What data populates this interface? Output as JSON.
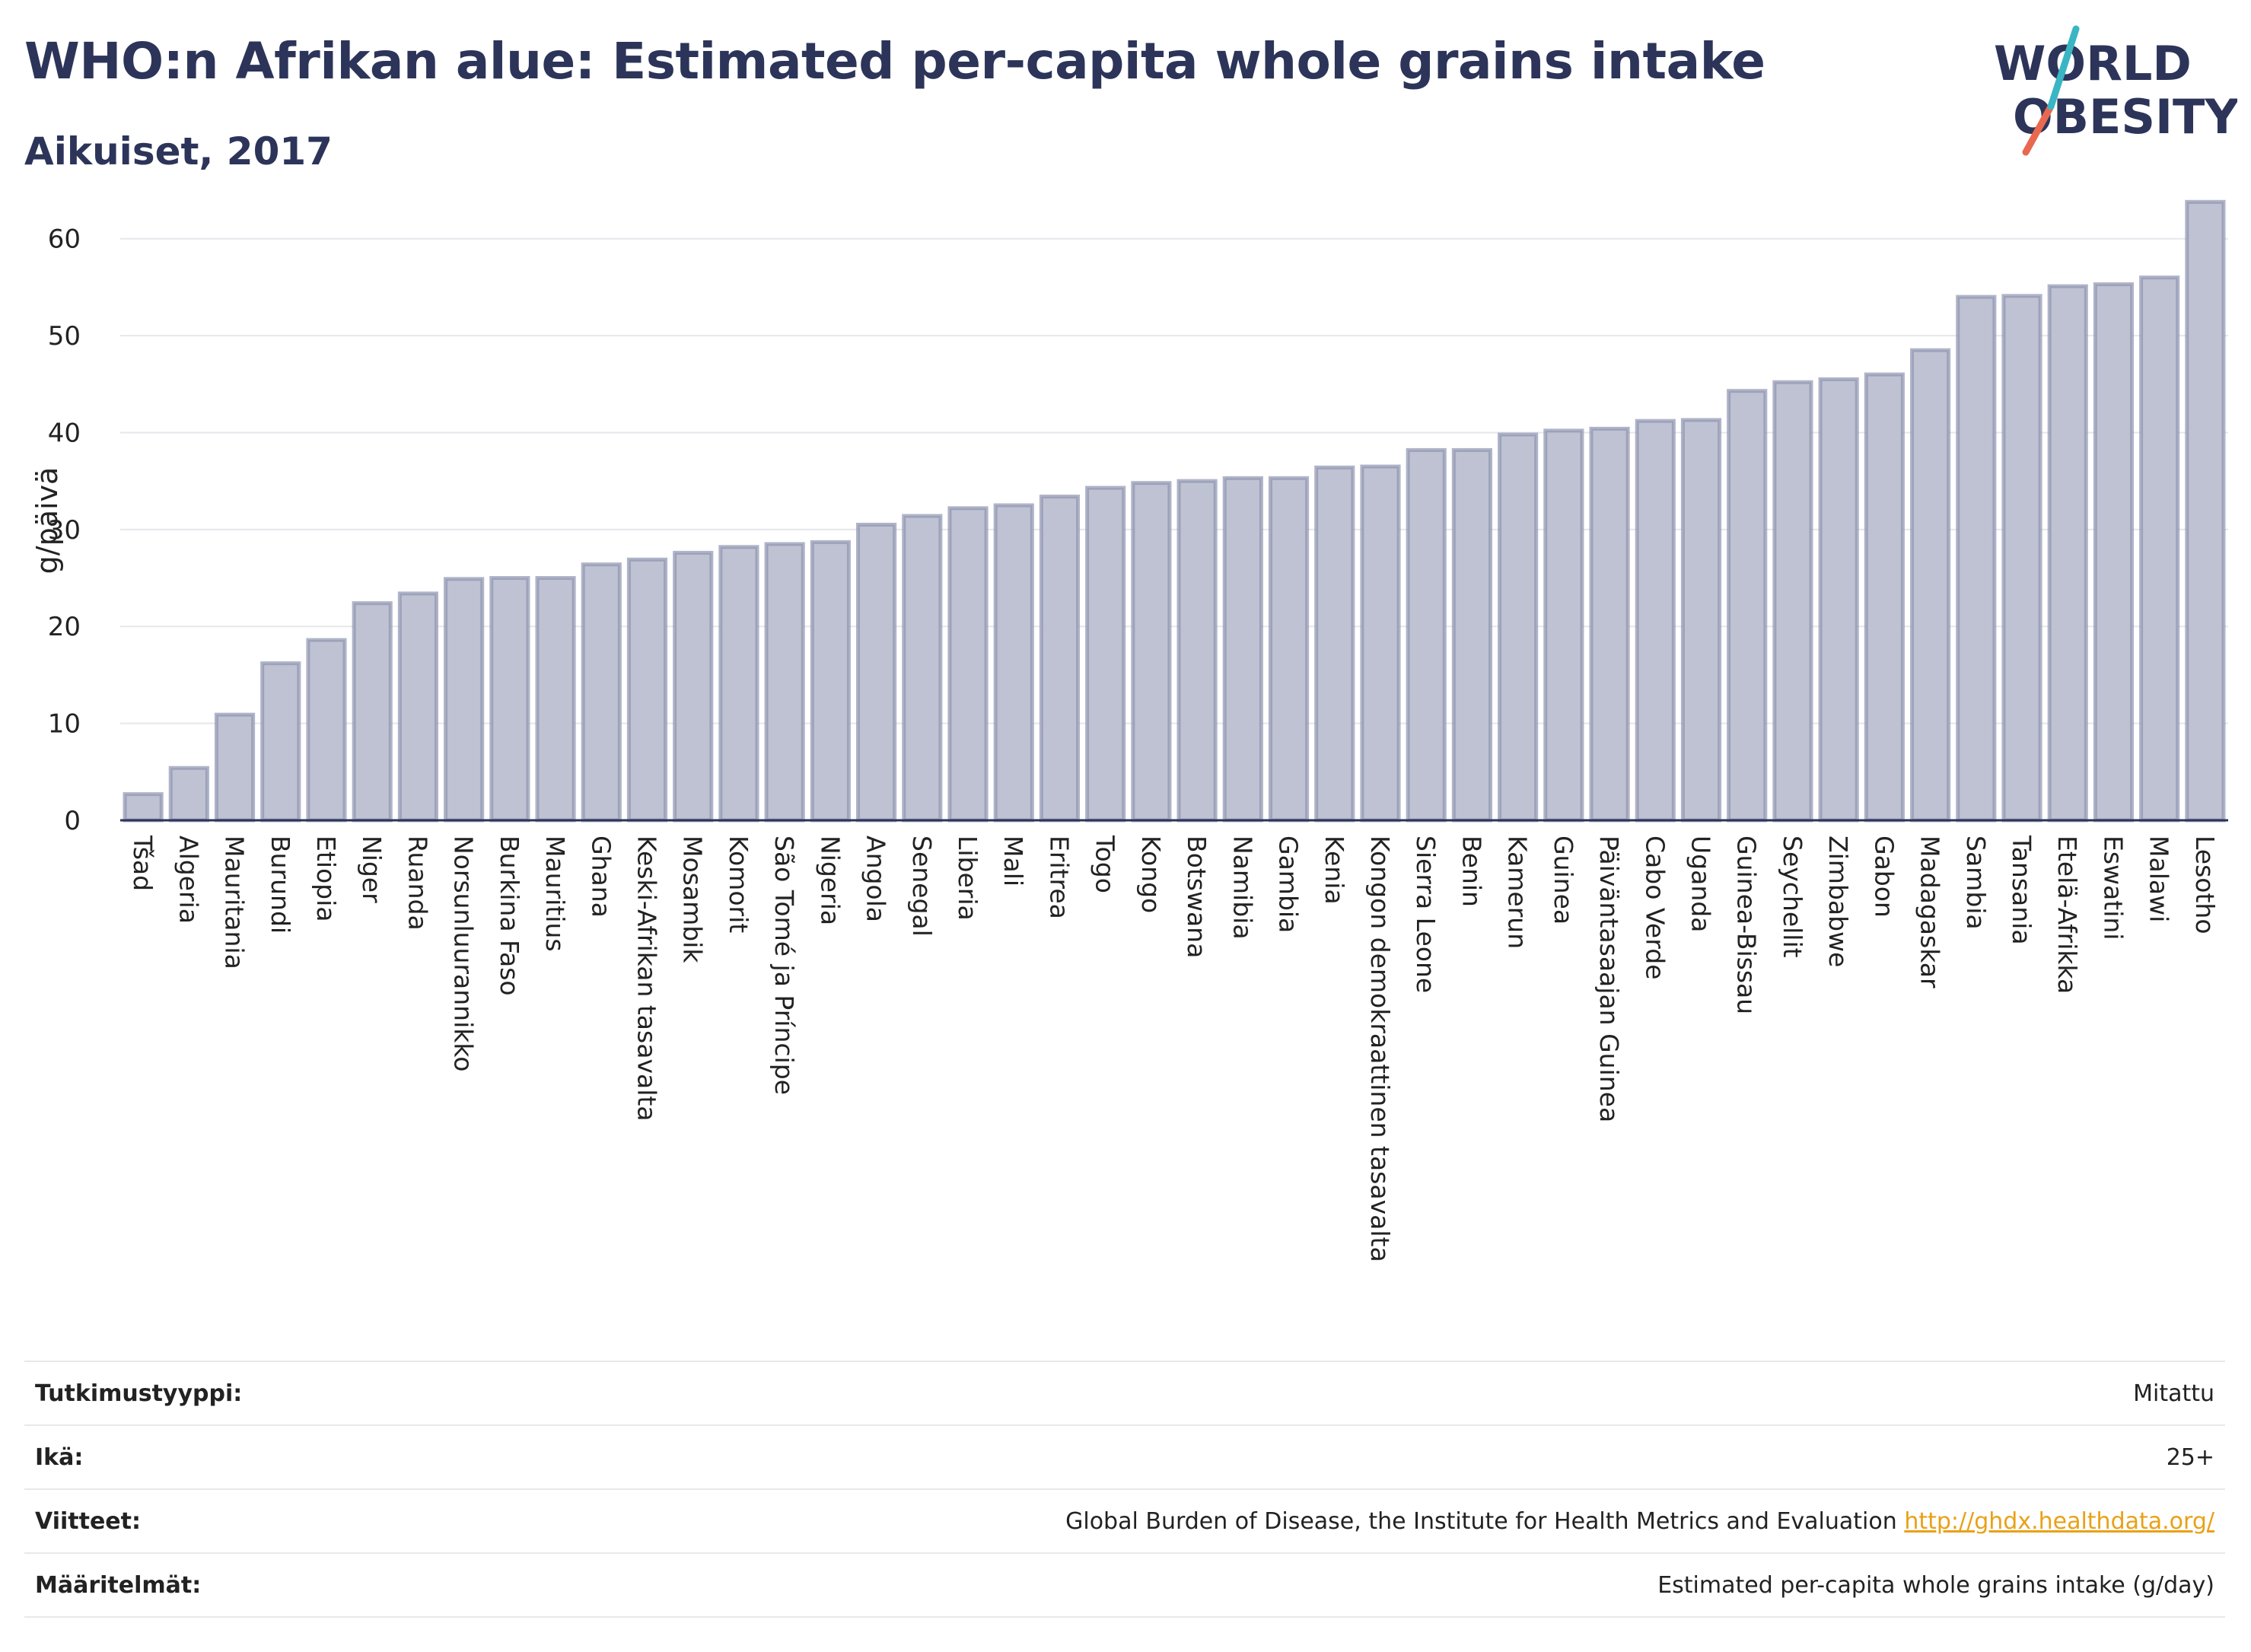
{
  "header": {
    "title": "WHO:n Afrikan alue: Estimated per-capita whole grains intake",
    "subtitle": "Aikuiset, 2017"
  },
  "logo": {
    "line1": "WORLD",
    "line2": "OBESITY",
    "accent_colors": [
      "#3ab5c4",
      "#e8694f"
    ]
  },
  "chart_data": {
    "type": "bar",
    "title": "WHO:n Afrikan alue: Estimated per-capita whole grains intake",
    "subtitle": "Aikuiset, 2017",
    "ylabel": "g/päivä",
    "xlabel": "",
    "ylim": [
      0,
      65
    ],
    "yticks": [
      0,
      10,
      20,
      30,
      40,
      50,
      60
    ],
    "grid": true,
    "bar_color": "#bfc2d2",
    "bar_border_color": "#8f94b0",
    "categories": [
      "Tšad",
      "Algeria",
      "Mauritania",
      "Burundi",
      "Etiopia",
      "Niger",
      "Ruanda",
      "Norsunluurannikko",
      "Burkina Faso",
      "Mauritius",
      "Ghana",
      "Keski-Afrikan tasavalta",
      "Mosambik",
      "Komorit",
      "São Tomé ja Príncipe",
      "Nigeria",
      "Angola",
      "Senegal",
      "Liberia",
      "Mali",
      "Eritrea",
      "Togo",
      "Kongo",
      "Botswana",
      "Namibia",
      "Gambia",
      "Kenia",
      "Kongon demokraattinen tasavalta",
      "Sierra Leone",
      "Benin",
      "Kamerun",
      "Guinea",
      "Päiväntasaajan Guinea",
      "Cabo Verde",
      "Uganda",
      "Guinea-Bissau",
      "Seychellit",
      "Zimbabwe",
      "Gabon",
      "Madagaskar",
      "Sambia",
      "Tansania",
      "Etelä-Afrikka",
      "Eswatini",
      "Malawi",
      "Lesotho"
    ],
    "values": [
      2.7,
      5.4,
      10.9,
      16.2,
      18.6,
      22.4,
      23.4,
      24.9,
      25.0,
      25.0,
      26.4,
      26.9,
      27.6,
      28.2,
      28.5,
      28.7,
      30.5,
      31.4,
      32.2,
      32.5,
      33.4,
      34.3,
      34.8,
      35.0,
      35.3,
      35.3,
      36.4,
      36.5,
      38.2,
      38.2,
      39.8,
      40.2,
      40.4,
      41.2,
      41.3,
      44.3,
      45.2,
      45.5,
      46.0,
      48.5,
      54.0,
      54.1,
      55.1,
      55.3,
      56.0,
      63.8
    ]
  },
  "metadata": {
    "rows": [
      {
        "label": "Tutkimustyyppi:",
        "value": "Mitattu"
      },
      {
        "label": "Ikä:",
        "value": "25+"
      },
      {
        "label": "Viitteet:",
        "value": "Global Burden of Disease, the Institute for Health Metrics and Evaluation",
        "link": "http://ghdx.healthdata.org/"
      },
      {
        "label": "Määritelmät:",
        "value": "Estimated per-capita whole grains intake (g/day)"
      }
    ]
  }
}
